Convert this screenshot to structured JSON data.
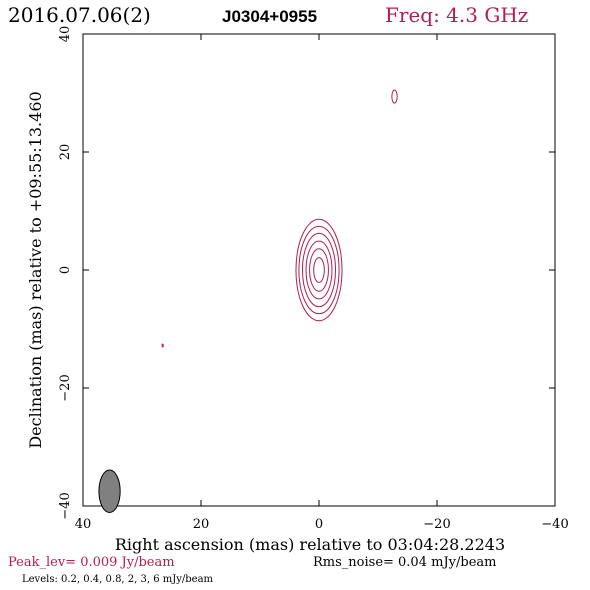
{
  "header": {
    "date": "2016.07.06(2)",
    "source": "J0304+0955",
    "freq": "Freq: 4.3 GHz"
  },
  "footer": {
    "peak": "Peak_lev=  0.009 Jy/beam",
    "noise": "Rms_noise= 0.04 mJy/beam",
    "levels": "Levels: 0.2, 0.4, 0.8,    2,    3,    6 mJy/beam"
  },
  "colors": {
    "contour": "#b0204c",
    "peak_text": "#b0204c",
    "axes": "#000000",
    "beam_fill": "#808080"
  },
  "chart_data": {
    "type": "contour",
    "xlabel": "Right ascension (mas) relative to 03:04:28.2243",
    "ylabel": "Declination (mas) relative to +09:55:13.460",
    "xlim": [
      40,
      -40
    ],
    "ylim": [
      -40,
      40
    ],
    "xticks": [
      40,
      20,
      0,
      -20,
      -40
    ],
    "yticks": [
      -40,
      -20,
      0,
      20,
      40
    ],
    "xtick_labels": [
      "40",
      "20",
      "0",
      "−20",
      "−40"
    ],
    "ytick_labels": [
      "−40",
      "−20",
      "0",
      "20",
      "40"
    ],
    "contour_levels_mJy": [
      0.2,
      0.4,
      0.8,
      2,
      3,
      6
    ],
    "components": [
      {
        "name": "core",
        "x": 0,
        "y": 0,
        "rings": [
          [
            3.9,
            8.6
          ],
          [
            3.4,
            7.4
          ],
          [
            2.8,
            6.2
          ],
          [
            2.2,
            4.9
          ],
          [
            1.6,
            3.6
          ],
          [
            0.9,
            2.1
          ]
        ]
      },
      {
        "name": "blob-ne",
        "x": -12.8,
        "y": 29.4,
        "rings": [
          [
            0.45,
            1.1
          ]
        ]
      },
      {
        "name": "blob-w",
        "x": 26.5,
        "y": -12.8,
        "rings": [
          [
            0.1,
            0.25
          ]
        ]
      }
    ],
    "beam": {
      "x": 35.5,
      "y": -37.5,
      "minor": 1.8,
      "major": 3.6
    }
  }
}
